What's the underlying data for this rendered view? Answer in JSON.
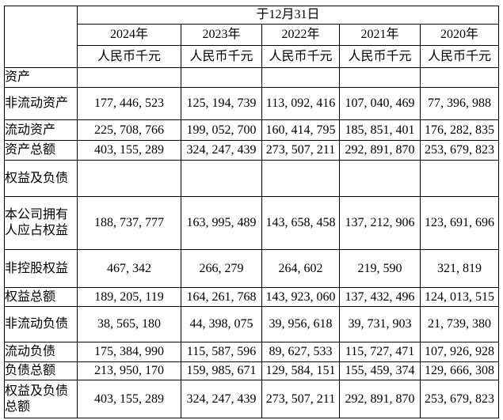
{
  "table": {
    "date_header": "于12月31日",
    "columns": [
      {
        "year": "2024年",
        "unit": "人民币千元"
      },
      {
        "year": "2023年",
        "unit": "人民币千元"
      },
      {
        "year": "2022年",
        "unit": "人民币千元"
      },
      {
        "year": "2021年",
        "unit": "人民币千元"
      },
      {
        "year": "2020年",
        "unit": "人民币千元"
      }
    ],
    "rows": [
      {
        "label": "资产",
        "type": "section",
        "values": [
          "",
          "",
          "",
          "",
          ""
        ]
      },
      {
        "label": "非流动资产",
        "type": "data",
        "values": [
          "177, 446, 523",
          "125, 194, 739",
          "113, 092, 416",
          "107, 040, 469",
          "77, 396, 988"
        ]
      },
      {
        "label": "流动资产",
        "type": "data",
        "values": [
          "225, 708, 766",
          "199, 052, 700",
          "160, 414, 795",
          "185, 851, 401",
          "176, 282, 835"
        ]
      },
      {
        "label": "资产总额",
        "type": "data",
        "values": [
          "403, 155, 289",
          "324, 247, 439",
          "273, 507, 211",
          "292, 891, 870",
          "253, 679, 823"
        ]
      },
      {
        "label": "权益及负债",
        "type": "section",
        "values": [
          "",
          "",
          "",
          "",
          ""
        ]
      },
      {
        "label": "本公司拥有人应占权益",
        "type": "data",
        "values": [
          "188, 737, 777",
          "163, 995, 489",
          "143, 658, 458",
          "137, 212, 906",
          "123, 691, 696"
        ]
      },
      {
        "label": "非控股权益",
        "type": "data",
        "values": [
          "467, 342",
          "266, 279",
          "264, 602",
          "219, 590",
          "321, 819"
        ]
      },
      {
        "label": "权益总额",
        "type": "data",
        "values": [
          "189, 205, 119",
          "164, 261, 768",
          "143, 923, 060",
          "137, 432, 496",
          "124, 013, 515"
        ]
      },
      {
        "label": "非流动负债",
        "type": "data",
        "values": [
          "38, 565, 180",
          "44, 398, 075",
          "39, 956, 618",
          "39, 731, 903",
          "21, 739, 380"
        ]
      },
      {
        "label": "流动负债",
        "type": "data",
        "values": [
          "175, 384, 990",
          "115, 587, 596",
          "89, 627, 533",
          "115, 727, 471",
          "107, 926, 928"
        ]
      },
      {
        "label": "负债总额",
        "type": "data",
        "values": [
          "213, 950, 170",
          "159, 985, 671",
          "129, 584, 151",
          "155, 459, 374",
          "129, 666, 308"
        ]
      },
      {
        "label": "权益及负债总额",
        "type": "data",
        "values": [
          "403, 155, 289",
          "324, 247, 439",
          "273, 507, 211",
          "292, 891, 870",
          "253, 679, 823"
        ]
      }
    ]
  }
}
